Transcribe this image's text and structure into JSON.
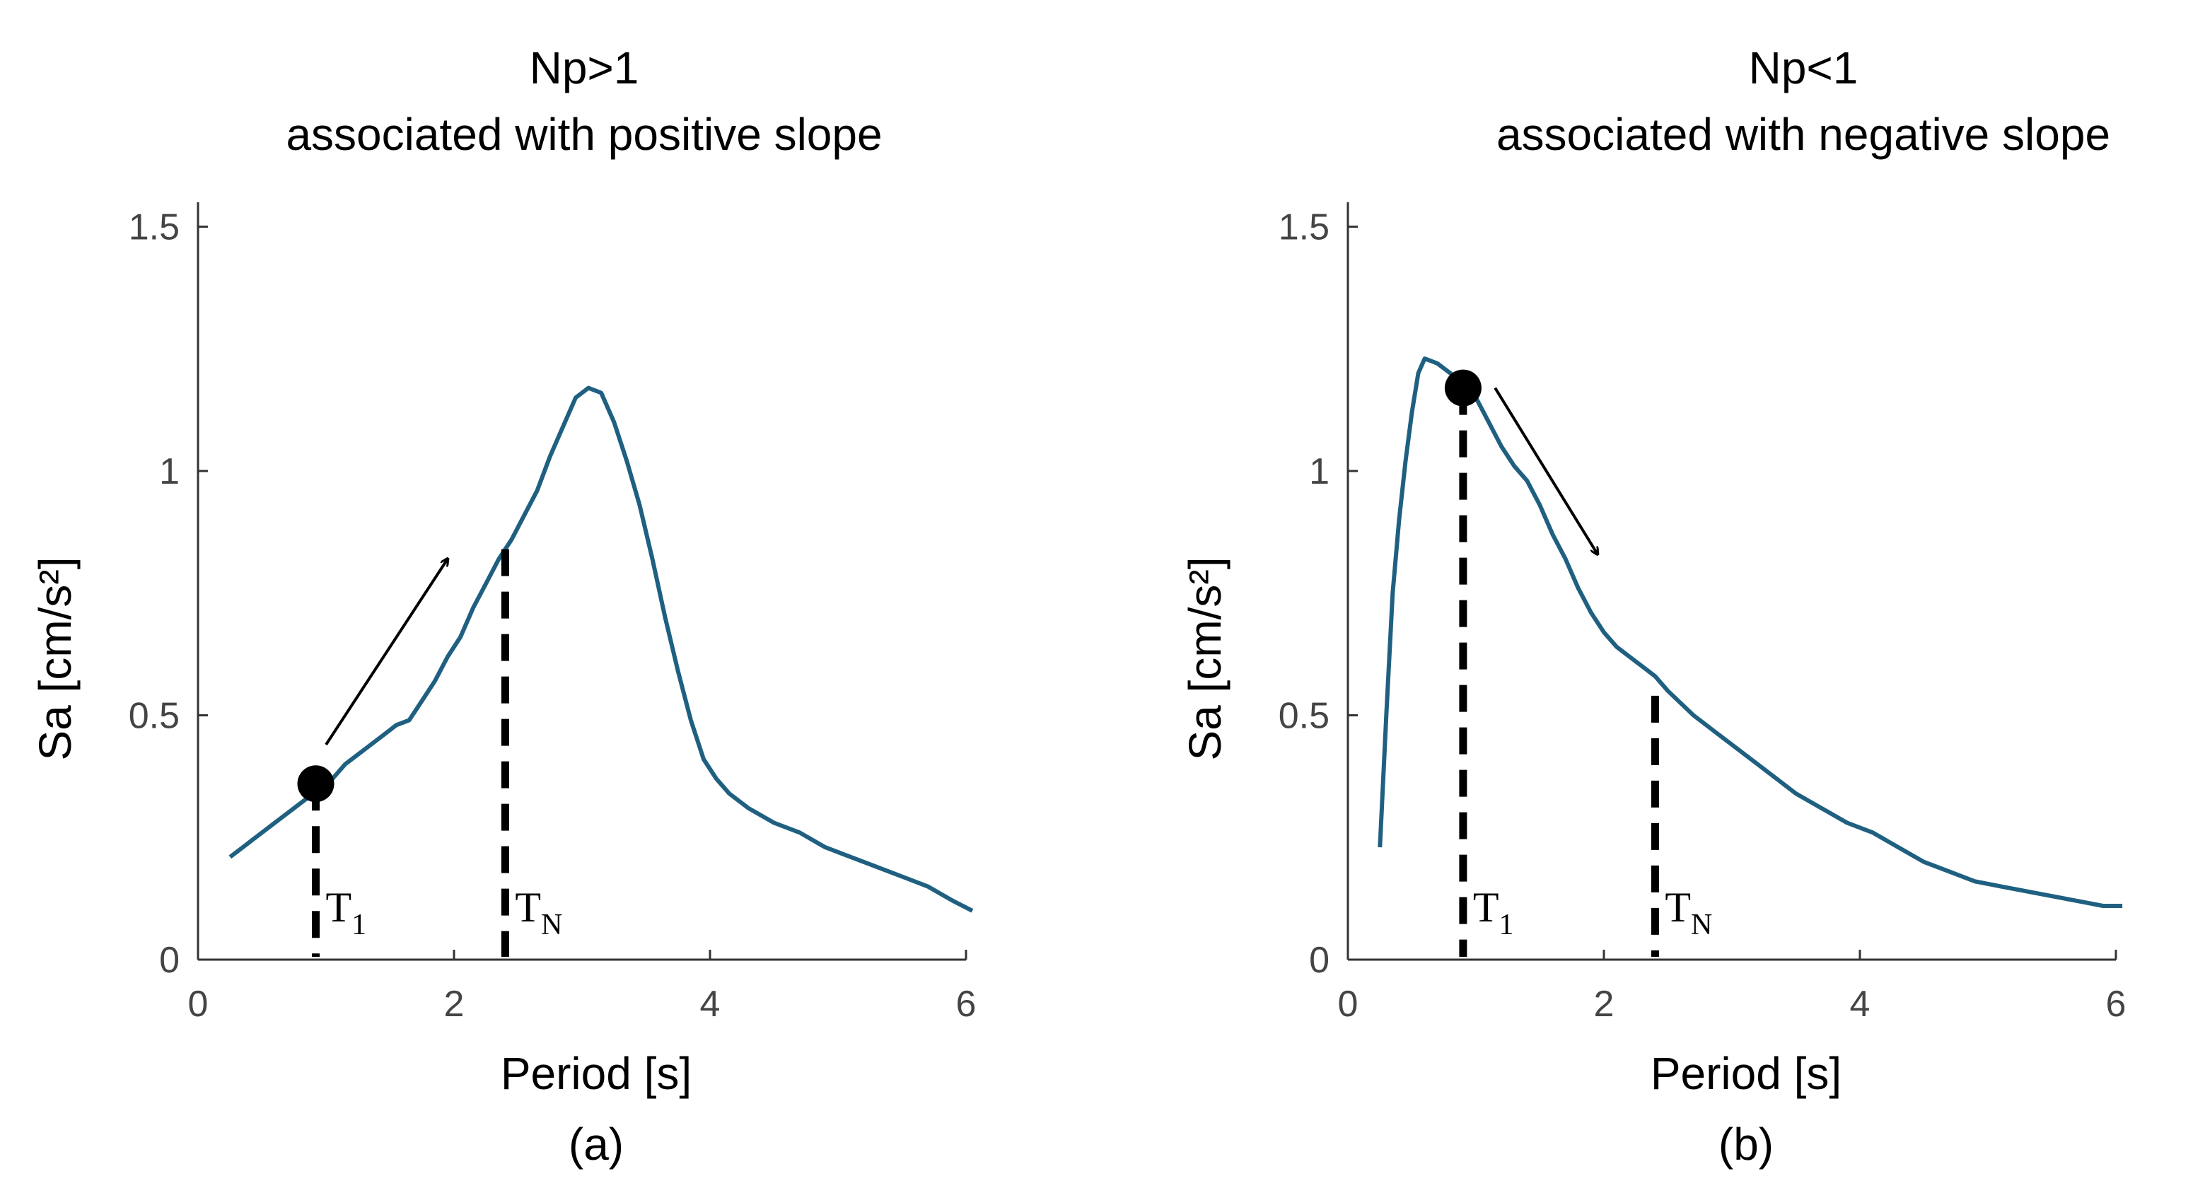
{
  "chart_data": [
    {
      "type": "line",
      "panel_label": "(a)",
      "title_line1": "Np>1",
      "title_line2": "associated with positive slope",
      "xlabel": "Period [s]",
      "ylabel": "Sa [cm/s²]",
      "xlim": [
        0,
        6
      ],
      "ylim": [
        0,
        1.55
      ],
      "xticks": [
        0,
        2,
        4,
        6
      ],
      "xtick_labels": [
        "0",
        "2",
        "4",
        "6"
      ],
      "yticks": [
        0,
        0.5,
        1,
        1.5
      ],
      "ytick_labels": [
        "0",
        "0.5",
        "1",
        "1.5"
      ],
      "line_color": "#1f6081",
      "series": {
        "x": [
          0.25,
          0.35,
          0.45,
          0.55,
          0.65,
          0.75,
          0.85,
          0.95,
          1.05,
          1.15,
          1.25,
          1.35,
          1.45,
          1.55,
          1.65,
          1.75,
          1.85,
          1.95,
          2.05,
          2.15,
          2.25,
          2.35,
          2.45,
          2.55,
          2.65,
          2.75,
          2.85,
          2.95,
          3.05,
          3.15,
          3.25,
          3.35,
          3.45,
          3.55,
          3.65,
          3.75,
          3.85,
          3.95,
          4.05,
          4.15,
          4.3,
          4.5,
          4.7,
          4.9,
          5.1,
          5.3,
          5.5,
          5.7,
          5.9,
          6.05
        ],
        "y": [
          0.21,
          0.23,
          0.25,
          0.27,
          0.29,
          0.31,
          0.33,
          0.35,
          0.37,
          0.4,
          0.42,
          0.44,
          0.46,
          0.48,
          0.49,
          0.53,
          0.57,
          0.62,
          0.66,
          0.72,
          0.77,
          0.82,
          0.86,
          0.91,
          0.96,
          1.03,
          1.09,
          1.15,
          1.17,
          1.16,
          1.1,
          1.02,
          0.93,
          0.82,
          0.7,
          0.59,
          0.49,
          0.41,
          0.37,
          0.34,
          0.31,
          0.28,
          0.26,
          0.23,
          0.21,
          0.19,
          0.17,
          0.15,
          0.12,
          0.1
        ]
      },
      "marker_label": "T1",
      "marker": {
        "x": 0.92,
        "y": 0.36
      },
      "dashed_lines": [
        {
          "label": "T1",
          "x": 0.92,
          "y_top": 0.36,
          "text_main": "T",
          "text_sub": "1"
        },
        {
          "label": "TN",
          "x": 2.4,
          "y_top": 0.84,
          "text_main": "T",
          "text_sub": "N"
        }
      ],
      "arrow": {
        "from": [
          1.0,
          0.44
        ],
        "to": [
          1.95,
          0.82
        ]
      }
    },
    {
      "type": "line",
      "panel_label": "(b)",
      "title_line1": "Np<1",
      "title_line2": "associated with negative slope",
      "xlabel": "Period [s]",
      "ylabel": "Sa [cm/s²]",
      "xlim": [
        0,
        6
      ],
      "ylim": [
        0,
        1.55
      ],
      "xticks": [
        0,
        2,
        4,
        6
      ],
      "xtick_labels": [
        "0",
        "2",
        "4",
        "6"
      ],
      "yticks": [
        0,
        0.5,
        1,
        1.5
      ],
      "ytick_labels": [
        "0",
        "0.5",
        "1",
        "1.5"
      ],
      "line_color": "#1f6081",
      "series": {
        "x": [
          0.25,
          0.3,
          0.35,
          0.4,
          0.45,
          0.5,
          0.55,
          0.6,
          0.7,
          0.8,
          0.9,
          1.0,
          1.1,
          1.2,
          1.3,
          1.4,
          1.5,
          1.6,
          1.7,
          1.8,
          1.9,
          2.0,
          2.1,
          2.2,
          2.3,
          2.4,
          2.5,
          2.7,
          2.9,
          3.1,
          3.3,
          3.5,
          3.7,
          3.9,
          4.1,
          4.3,
          4.5,
          4.7,
          4.9,
          5.1,
          5.3,
          5.5,
          5.7,
          5.9,
          6.05
        ],
        "y": [
          0.23,
          0.5,
          0.75,
          0.9,
          1.02,
          1.12,
          1.2,
          1.23,
          1.22,
          1.2,
          1.18,
          1.15,
          1.1,
          1.05,
          1.01,
          0.98,
          0.93,
          0.87,
          0.82,
          0.76,
          0.71,
          0.67,
          0.64,
          0.62,
          0.6,
          0.58,
          0.55,
          0.5,
          0.46,
          0.42,
          0.38,
          0.34,
          0.31,
          0.28,
          0.26,
          0.23,
          0.2,
          0.18,
          0.16,
          0.15,
          0.14,
          0.13,
          0.12,
          0.11,
          0.11
        ]
      },
      "marker_label": "T1",
      "marker": {
        "x": 0.9,
        "y": 1.17
      },
      "dashed_lines": [
        {
          "label": "T1",
          "x": 0.9,
          "y_top": 1.17,
          "text_main": "T",
          "text_sub": "1"
        },
        {
          "label": "TN",
          "x": 2.4,
          "y_top": 0.54,
          "text_main": "T",
          "text_sub": "N"
        }
      ],
      "arrow": {
        "from": [
          1.15,
          1.17
        ],
        "to": [
          1.95,
          0.83
        ]
      }
    }
  ]
}
